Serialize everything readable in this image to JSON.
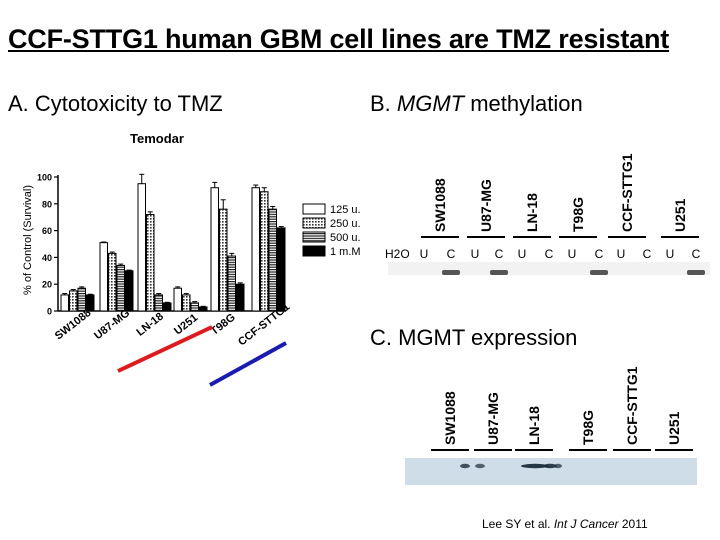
{
  "title": "CCF-STTG1 human GBM cell lines are TMZ resistant",
  "panel_a": {
    "heading": "A. Cytotoxicity to TMZ"
  },
  "panel_b": {
    "heading_prefix": "B. ",
    "heading_gene": "MGMT",
    "heading_suffix": " methylation",
    "lanes": [
      "SW1088",
      "U87-MG",
      "LN-18",
      "T98G",
      "CCF-STTG1",
      "U251"
    ],
    "h2o_label": "H2O",
    "uc_labels": [
      "U",
      "C",
      "U",
      "C",
      "U",
      "C",
      "U",
      "C",
      "U",
      "C",
      "U",
      "C"
    ]
  },
  "panel_c": {
    "heading": "C. MGMT expression",
    "lanes": [
      "SW1088",
      "U87-MG",
      "LN-18",
      "T98G",
      "CCF-STTG1",
      "U251"
    ]
  },
  "citation": {
    "authors": "Lee SY  et al.",
    "journal": "Int J Cancer",
    "year": " 2011"
  },
  "chart_data": {
    "type": "bar",
    "title": "Temodar",
    "ylabel": "% of Control (Survival)",
    "xlabel": "",
    "ylim": [
      0,
      100
    ],
    "yticks": [
      0,
      20,
      40,
      60,
      80,
      100
    ],
    "categories": [
      "SW1088",
      "U87-MG",
      "LN-18",
      "U251",
      "T98G",
      "CCF-STTG1"
    ],
    "series": [
      {
        "name": "125 u.M",
        "values": [
          12,
          51,
          95,
          17,
          92,
          92
        ],
        "errors": [
          1,
          0.5,
          7,
          1,
          4,
          2
        ]
      },
      {
        "name": "250 u.M",
        "values": [
          15,
          43,
          72,
          12,
          76,
          89
        ],
        "errors": [
          1,
          1,
          2,
          1,
          7,
          3
        ]
      },
      {
        "name": "500 u.M",
        "values": [
          17,
          34,
          12,
          6,
          41,
          76
        ],
        "errors": [
          1,
          1,
          1,
          1,
          2,
          2
        ]
      },
      {
        "name": "1 m.M",
        "values": [
          12,
          30,
          6,
          3,
          20,
          62
        ],
        "errors": [
          0.5,
          0.5,
          0.5,
          0.5,
          1,
          1
        ]
      }
    ],
    "resistant_marker": {
      "red_underline": [
        "LN-18",
        "T98G"
      ],
      "blue_underline": [
        "CCF-STTG1"
      ]
    },
    "colors": {
      "series_1": "#ffffff",
      "series_2": "#aaaaaa",
      "series_3": "#777777",
      "series_4": "#000000",
      "red": "#e0191c",
      "blue": "#1a1ab4"
    }
  }
}
